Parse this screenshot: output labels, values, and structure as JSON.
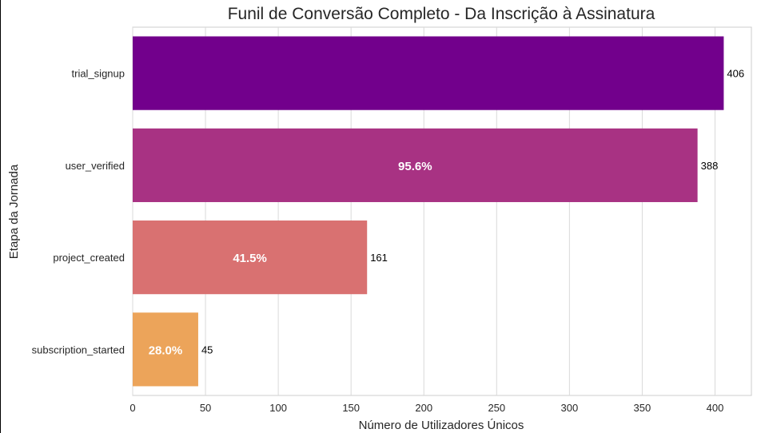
{
  "chart_data": {
    "type": "bar",
    "orientation": "horizontal",
    "title": "Funil de Conversão Completo - Da Inscrição à Assinatura",
    "xlabel": "Número de Utilizadores Únicos",
    "ylabel": "Etapa da Jornada",
    "xlim": [
      0,
      425
    ],
    "x_ticks": [
      0,
      50,
      100,
      150,
      200,
      250,
      300,
      350,
      400
    ],
    "categories": [
      "trial_signup",
      "user_verified",
      "project_created",
      "subscription_started"
    ],
    "values": [
      406,
      388,
      161,
      45
    ],
    "value_labels": [
      "406",
      "388",
      "161",
      "45"
    ],
    "conversion_labels": [
      "",
      "95.6%",
      "41.5%",
      "28.0%"
    ],
    "colors": [
      "#72008c",
      "#a83283",
      "#d97171",
      "#eca45a"
    ],
    "grid": "vertical"
  }
}
